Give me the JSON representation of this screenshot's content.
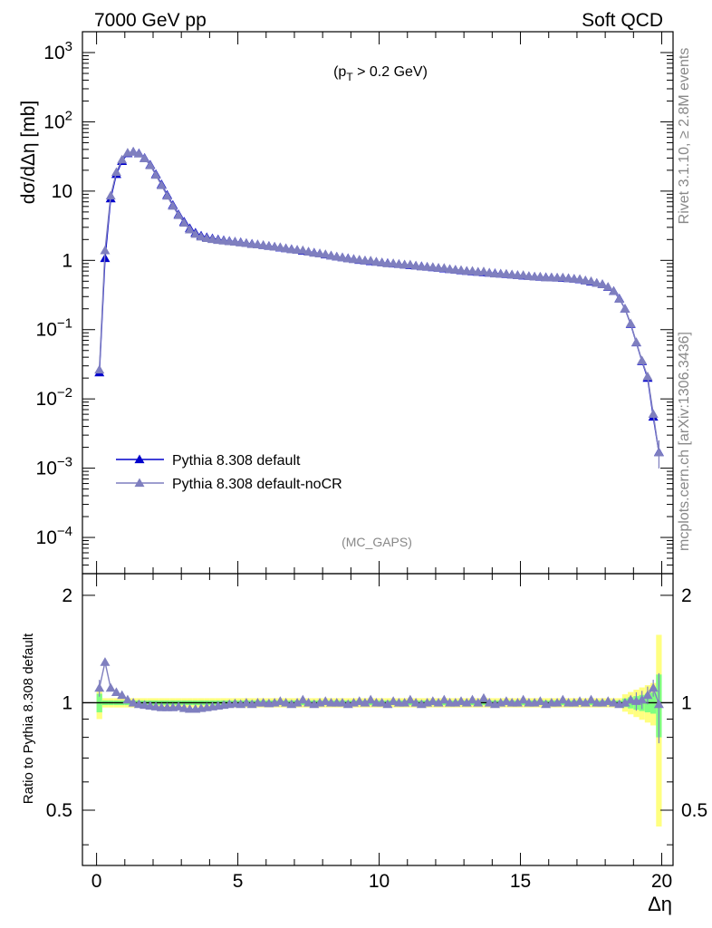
{
  "header": {
    "left": "7000 GeV pp",
    "right": "Soft QCD"
  },
  "main_plot": {
    "ylabel": "dσ/dΔη [mb]",
    "cut_annotation": "(p_T > 0.2 GeV)",
    "analysis_label": "(MC_GAPS)",
    "ytick_labels": [
      "10^3",
      "10^2",
      "10",
      "1",
      "10^-1",
      "10^-2",
      "10^-3",
      "10^-4"
    ]
  },
  "ratio_plot": {
    "ylabel": "Ratio to Pythia 8.308 default",
    "ytick_labels": [
      "2",
      "1",
      "0.5"
    ]
  },
  "xaxis": {
    "label": "Δη",
    "tick_labels": [
      "0",
      "5",
      "10",
      "15",
      "20"
    ]
  },
  "side_text": {
    "rivet": "Rivet 3.1.10, ≥ 2.8M events",
    "source": "mcplots.cern.ch [arXiv:1306.3436]"
  },
  "legend": [
    {
      "label": "Pythia 8.308 default",
      "color": "#0000cc"
    },
    {
      "label": "Pythia 8.308 default-noCR",
      "color": "#7f7fbf"
    }
  ],
  "chart_data": {
    "type": "line",
    "x_range": [
      -0.5,
      20.4
    ],
    "main_ylim": [
      3e-05,
      2000
    ],
    "main_yscale": "log",
    "ratio_ylim": [
      0.35,
      2.3
    ],
    "ratio_yscale": "log",
    "series": [
      {
        "name": "Pythia 8.308 default",
        "color": "#0000cc",
        "marker": "triangle",
        "x": [
          0.1,
          0.3,
          0.5,
          0.7,
          0.9,
          1.1,
          1.3,
          1.5,
          1.7,
          1.9,
          2.1,
          2.3,
          2.5,
          2.7,
          2.9,
          3.1,
          3.3,
          3.5,
          3.7,
          3.9,
          4.1,
          4.3,
          4.5,
          4.7,
          4.9,
          5.1,
          5.3,
          5.5,
          5.7,
          5.9,
          6.1,
          6.3,
          6.5,
          6.7,
          6.9,
          7.1,
          7.3,
          7.5,
          7.7,
          7.9,
          8.1,
          8.3,
          8.5,
          8.7,
          8.9,
          9.1,
          9.3,
          9.5,
          9.7,
          9.9,
          10.1,
          10.3,
          10.5,
          10.7,
          10.9,
          11.1,
          11.3,
          11.5,
          11.7,
          11.9,
          12.1,
          12.3,
          12.5,
          12.7,
          12.9,
          13.1,
          13.3,
          13.5,
          13.7,
          13.9,
          14.1,
          14.3,
          14.5,
          14.7,
          14.9,
          15.1,
          15.3,
          15.5,
          15.7,
          15.9,
          16.1,
          16.3,
          16.5,
          16.7,
          16.9,
          17.1,
          17.3,
          17.5,
          17.7,
          17.9,
          18.1,
          18.3,
          18.5,
          18.7,
          18.9,
          19.1,
          19.3,
          19.5,
          19.7,
          19.9
        ],
        "y": [
          0.024,
          1.07,
          7.8,
          17.5,
          27,
          35,
          37,
          35,
          30,
          24,
          17.5,
          12.5,
          8.8,
          6.3,
          4.6,
          3.6,
          2.9,
          2.5,
          2.27,
          2.15,
          2.07,
          2.0,
          1.95,
          1.9,
          1.86,
          1.82,
          1.77,
          1.73,
          1.69,
          1.65,
          1.61,
          1.57,
          1.53,
          1.49,
          1.45,
          1.41,
          1.37,
          1.33,
          1.29,
          1.25,
          1.21,
          1.17,
          1.13,
          1.1,
          1.07,
          1.04,
          1.01,
          0.99,
          0.97,
          0.95,
          0.93,
          0.91,
          0.895,
          0.88,
          0.865,
          0.85,
          0.835,
          0.82,
          0.805,
          0.79,
          0.775,
          0.76,
          0.745,
          0.73,
          0.715,
          0.7,
          0.69,
          0.68,
          0.67,
          0.66,
          0.65,
          0.64,
          0.63,
          0.62,
          0.61,
          0.6,
          0.59,
          0.58,
          0.575,
          0.57,
          0.565,
          0.56,
          0.555,
          0.55,
          0.54,
          0.53,
          0.51,
          0.49,
          0.47,
          0.45,
          0.41,
          0.36,
          0.28,
          0.2,
          0.12,
          0.065,
          0.035,
          0.02,
          0.0055,
          0.0017
        ]
      },
      {
        "name": "Pythia 8.308 default-noCR",
        "color": "#7f7fbf",
        "marker": "triangle",
        "x": [
          0.1,
          0.3,
          0.5,
          0.7,
          0.9,
          1.1,
          1.3,
          1.5,
          1.7,
          1.9,
          2.1,
          2.3,
          2.5,
          2.7,
          2.9,
          3.1,
          3.3,
          3.5,
          3.7,
          3.9,
          4.1,
          4.3,
          4.5,
          4.7,
          4.9,
          5.1,
          5.3,
          5.5,
          5.7,
          5.9,
          6.1,
          6.3,
          6.5,
          6.7,
          6.9,
          7.1,
          7.3,
          7.5,
          7.7,
          7.9,
          8.1,
          8.3,
          8.5,
          8.7,
          8.9,
          9.1,
          9.3,
          9.5,
          9.7,
          9.9,
          10.1,
          10.3,
          10.5,
          10.7,
          10.9,
          11.1,
          11.3,
          11.5,
          11.7,
          11.9,
          12.1,
          12.3,
          12.5,
          12.7,
          12.9,
          13.1,
          13.3,
          13.5,
          13.7,
          13.9,
          14.1,
          14.3,
          14.5,
          14.7,
          14.9,
          15.1,
          15.3,
          15.5,
          15.7,
          15.9,
          16.1,
          16.3,
          16.5,
          16.7,
          16.9,
          17.1,
          17.3,
          17.5,
          17.7,
          17.9,
          18.1,
          18.3,
          18.5,
          18.7,
          18.9,
          19.1,
          19.3,
          19.5,
          19.7,
          19.9
        ],
        "ratio": [
          1.1,
          1.3,
          1.1,
          1.07,
          1.05,
          1.02,
          1.0,
          0.99,
          0.985,
          0.98,
          0.975,
          0.97,
          0.97,
          0.97,
          0.975,
          0.965,
          0.96,
          0.96,
          0.965,
          0.97,
          0.975,
          0.98,
          0.985,
          0.99,
          0.995,
          0.99,
          1.0,
          0.99,
          1.0,
          1.0,
          0.995,
          1.0,
          1.01,
          1.0,
          0.99,
          1.0,
          1.02,
          1.0,
          0.99,
          1.0,
          1.01,
          1.0,
          1.0,
          1.0,
          0.99,
          1.0,
          1.01,
          1.0,
          1.02,
          1.0,
          1.0,
          0.99,
          1.01,
          1.0,
          1.0,
          1.02,
          1.0,
          0.99,
          1.0,
          1.01,
          1.0,
          1.02,
          1.0,
          1.0,
          1.01,
          1.0,
          1.02,
          1.0,
          1.03,
          1.0,
          0.99,
          1.0,
          1.01,
          1.0,
          1.0,
          1.02,
          1.0,
          1.0,
          1.01,
          0.99,
          1.0,
          1.0,
          1.02,
          1.0,
          1.0,
          1.01,
          1.0,
          1.02,
          1.0,
          1.0,
          1.01,
          1.0,
          0.99,
          1.0,
          1.02,
          1.01,
          1.02,
          1.05,
          1.1,
          0.99
        ]
      }
    ]
  }
}
